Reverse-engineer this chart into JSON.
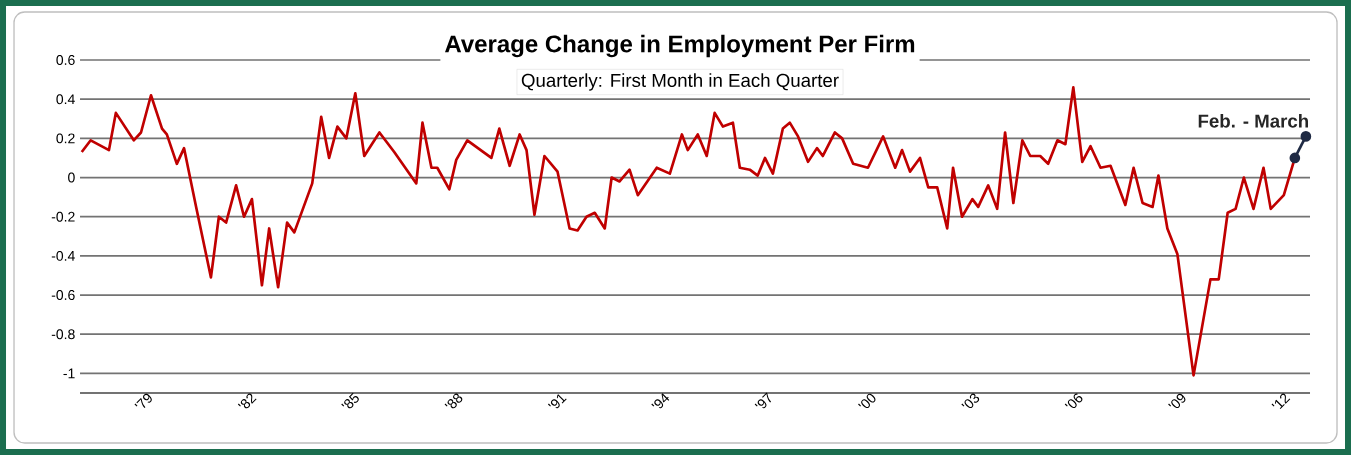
{
  "chart_data": {
    "type": "line",
    "title": "Average Change in Employment Per Firm",
    "subtitle": "Quarterly: First Month in Each Quarter",
    "annotations": [
      {
        "text": "Feb. - March",
        "x": 2012.58,
        "y": 0.21
      }
    ],
    "xlim": [
      1977,
      2012.7
    ],
    "ylim": [
      -1.1,
      0.6
    ],
    "xticks": [
      {
        "value": 1979,
        "label": "'79"
      },
      {
        "value": 1982,
        "label": "'82"
      },
      {
        "value": 1985,
        "label": "'85"
      },
      {
        "value": 1988,
        "label": "'88"
      },
      {
        "value": 1991,
        "label": "'91"
      },
      {
        "value": 1994,
        "label": "'94"
      },
      {
        "value": 1997,
        "label": "'97"
      },
      {
        "value": 2000,
        "label": "'00"
      },
      {
        "value": 2003,
        "label": "'03"
      },
      {
        "value": 2006,
        "label": "'06"
      },
      {
        "value": 2009,
        "label": "'09"
      },
      {
        "value": 2012,
        "label": "'12"
      }
    ],
    "yticks": [
      0.6,
      0.4,
      0.2,
      0,
      -0.2,
      -0.4,
      -0.6,
      -0.8,
      -1
    ],
    "grid": "y",
    "series": [
      {
        "color": "#c00000",
        "x": [
          1977.05,
          1977.31,
          1977.84,
          1978.04,
          1978.56,
          1978.77,
          1979.06,
          1979.38,
          1979.52,
          1979.81,
          1980.02,
          1980.37,
          1980.8,
          1981.03,
          1981.24,
          1981.53,
          1981.76,
          1981.99,
          1982.28,
          1982.49,
          1982.75,
          1983.01,
          1983.22,
          1983.74,
          1984.0,
          1984.23,
          1984.47,
          1984.73,
          1984.99,
          1985.25,
          1985.69,
          1986.12,
          1986.76,
          1986.94,
          1987.2,
          1987.37,
          1987.72,
          1987.92,
          1988.24,
          1988.94,
          1989.17,
          1989.47,
          1989.76,
          1989.96,
          1990.19,
          1990.48,
          1990.86,
          1991.21,
          1991.44,
          1991.7,
          1991.94,
          1992.23,
          1992.43,
          1992.66,
          1992.95,
          1993.19,
          1993.74,
          1994.12,
          1994.47,
          1994.64,
          1994.93,
          1995.19,
          1995.42,
          1995.66,
          1995.95,
          1996.15,
          1996.44,
          1996.67,
          1996.88,
          1997.11,
          1997.4,
          1997.6,
          1997.84,
          1998.13,
          1998.39,
          1998.56,
          1998.91,
          1999.12,
          1999.44,
          1999.87,
          2000.31,
          2000.66,
          2000.86,
          2001.09,
          2001.38,
          2001.62,
          2001.88,
          2002.17,
          2002.34,
          2002.6,
          2002.9,
          2003.07,
          2003.36,
          2003.62,
          2003.85,
          2004.09,
          2004.35,
          2004.58,
          2004.87,
          2005.1,
          2005.37,
          2005.6,
          2005.83,
          2006.09,
          2006.33,
          2006.62,
          2006.91,
          2007.34,
          2007.58,
          2007.84,
          2008.13,
          2008.3,
          2008.56,
          2008.85,
          2009.32,
          2009.81,
          2010.05,
          2010.31,
          2010.54,
          2010.78,
          2011.06,
          2011.35,
          2011.56,
          2011.94,
          2012.26
        ],
        "values": [
          0.13,
          0.19,
          0.14,
          0.33,
          0.19,
          0.23,
          0.42,
          0.25,
          0.22,
          0.07,
          0.15,
          -0.15,
          -0.51,
          -0.2,
          -0.23,
          -0.04,
          -0.2,
          -0.11,
          -0.55,
          -0.26,
          -0.56,
          -0.23,
          -0.28,
          -0.03,
          0.31,
          0.1,
          0.26,
          0.2,
          0.43,
          0.11,
          0.23,
          0.13,
          -0.03,
          0.28,
          0.05,
          0.05,
          -0.06,
          0.09,
          0.19,
          0.1,
          0.25,
          0.06,
          0.22,
          0.14,
          -0.19,
          0.11,
          0.03,
          -0.26,
          -0.27,
          -0.2,
          -0.18,
          -0.26,
          0.0,
          -0.02,
          0.04,
          -0.09,
          0.05,
          0.02,
          0.22,
          0.14,
          0.22,
          0.11,
          0.33,
          0.26,
          0.28,
          0.05,
          0.04,
          0.01,
          0.1,
          0.02,
          0.25,
          0.28,
          0.21,
          0.08,
          0.15,
          0.11,
          0.23,
          0.2,
          0.07,
          0.05,
          0.21,
          0.05,
          0.14,
          0.03,
          0.1,
          -0.05,
          -0.05,
          -0.26,
          0.05,
          -0.2,
          -0.11,
          -0.15,
          -0.04,
          -0.16,
          0.23,
          -0.13,
          0.19,
          0.11,
          0.11,
          0.07,
          0.19,
          0.17,
          0.46,
          0.08,
          0.16,
          0.05,
          0.06,
          -0.14,
          0.05,
          -0.13,
          -0.15,
          0.01,
          -0.26,
          -0.39,
          -1.01,
          -0.52,
          -0.52,
          -0.18,
          -0.16,
          0.0,
          -0.16,
          0.05,
          -0.16,
          -0.09,
          0.1
        ]
      },
      {
        "color": "#1f2a44",
        "marker": "circle",
        "x": [
          2012.26,
          2012.58
        ],
        "values": [
          0.1,
          0.21
        ]
      }
    ]
  }
}
